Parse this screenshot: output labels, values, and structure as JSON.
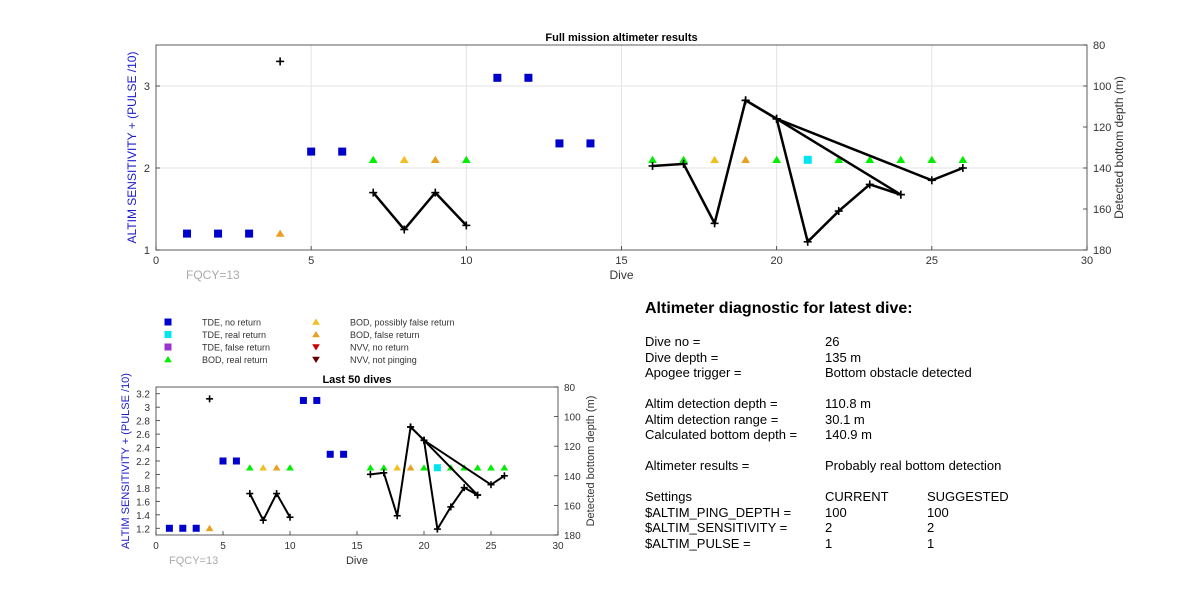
{
  "colors": {
    "TDE_no_return": "#0000cc",
    "TDE_real_return": "#00e5ee",
    "TDE_false_return": "#9933cc",
    "BOD_real_return": "#00ee00",
    "BOD_possibly_false": "#f0c020",
    "BOD_false": "#e8a020",
    "NVV_no_return": "#cc0000",
    "NVV_not_pinging": "#660000",
    "depth_line": "#000000",
    "left_axis": "#1a1acc",
    "fqcy": "#aaaaaa"
  },
  "chart_data": [
    {
      "id": "full_mission",
      "type": "scatter",
      "title": "Full mission altimeter results",
      "xlabel": "Dive",
      "ylabel": "ALTIM SENSITIVITY + (PULSE /10)",
      "y2label": "Detected bottom depth (m)",
      "xlim": [
        0,
        30
      ],
      "ylim": [
        1,
        3.5
      ],
      "y2lim": [
        80,
        180
      ],
      "y2_reversed": true,
      "grid": true,
      "x_ticks": [
        0,
        5,
        10,
        15,
        20,
        25,
        30
      ],
      "y_ticks": [
        1,
        2,
        3
      ],
      "y2_ticks": [
        80,
        100,
        120,
        140,
        160,
        180
      ],
      "annotation": "FQCY=13",
      "series": [
        {
          "name": "TDE, no return",
          "marker": "square",
          "x": [
            1,
            2,
            3,
            5,
            6,
            11,
            12,
            13,
            14
          ],
          "y": [
            1.2,
            1.2,
            1.2,
            2.2,
            2.2,
            3.1,
            3.1,
            2.3,
            2.3
          ]
        },
        {
          "name": "TDE, real return",
          "marker": "square",
          "x": [
            21
          ],
          "y": [
            2.1
          ]
        },
        {
          "name": "BOD, real return",
          "marker": "triangle-up",
          "x": [
            7,
            10,
            16,
            17,
            20,
            22,
            23,
            24,
            25,
            26
          ],
          "y": [
            2.1,
            2.1,
            2.1,
            2.1,
            2.1,
            2.1,
            2.1,
            2.1,
            2.1,
            2.1
          ]
        },
        {
          "name": "BOD, possibly false return",
          "marker": "triangle-up",
          "x": [
            8,
            18
          ],
          "y": [
            2.1,
            2.1
          ]
        },
        {
          "name": "BOD, false return",
          "marker": "triangle-up",
          "x": [
            4,
            9,
            19
          ],
          "y": [
            1.2,
            2.1,
            2.1
          ]
        }
      ],
      "depth_line": {
        "x": [
          4,
          7,
          8,
          9,
          10,
          16,
          17,
          18,
          19,
          20,
          21,
          22,
          23,
          24,
          19,
          20,
          25,
          26,
          20,
          24
        ],
        "y": [
          88,
          152,
          170,
          152,
          168,
          139,
          138,
          167,
          107,
          116,
          176,
          161,
          148,
          153,
          107,
          116,
          146,
          140,
          116,
          153
        ],
        "segments": [
          [
            0,
            1
          ],
          [
            1,
            5
          ],
          [
            5,
            14
          ],
          [
            14,
            18
          ],
          [
            18,
            20
          ]
        ]
      }
    },
    {
      "id": "last_50",
      "type": "scatter",
      "title": "Last 50 dives",
      "xlabel": "Dive",
      "ylabel": "ALTIM SENSITIVITY + (PULSE /10)",
      "y2label": "Detected bottom depth (m)",
      "xlim": [
        0,
        30
      ],
      "ylim": [
        1.1,
        3.3
      ],
      "y2lim": [
        80,
        180
      ],
      "y2_reversed": true,
      "grid": false,
      "x_ticks": [
        0,
        5,
        10,
        15,
        20,
        25,
        30
      ],
      "y_ticks": [
        1.2,
        1.4,
        1.6,
        1.8,
        2,
        2.2,
        2.4,
        2.6,
        2.8,
        3,
        3.2
      ],
      "y_tick_labels": [
        "1.2",
        "1.4",
        "1.6",
        "1.8",
        "2",
        "2.2",
        "2.4",
        "2.6",
        "2.8",
        "3",
        "3.2"
      ],
      "y2_ticks": [
        80,
        100,
        120,
        140,
        160,
        180
      ],
      "annotation": "FQCY=13",
      "legend": {
        "placement": "top",
        "entries": [
          {
            "label": "TDE, no return",
            "marker": "square",
            "color": "#0000cc"
          },
          {
            "label": "TDE, real return",
            "marker": "square",
            "color": "#00e5ee"
          },
          {
            "label": "TDE, false return",
            "marker": "square",
            "color": "#9933cc"
          },
          {
            "label": "BOD, real return",
            "marker": "triangle-up",
            "color": "#00ee00"
          },
          {
            "label": "BOD, possibly false return",
            "marker": "triangle-up",
            "color": "#f0c020"
          },
          {
            "label": "BOD, false return",
            "marker": "triangle-up",
            "color": "#e8a020"
          },
          {
            "label": "NVV, no return",
            "marker": "triangle-down",
            "color": "#cc0000"
          },
          {
            "label": "NVV, not pinging",
            "marker": "triangle-down",
            "color": "#660000"
          }
        ]
      }
    }
  ],
  "diagnostic": {
    "title": "Altimeter diagnostic for latest dive:",
    "dive_no": {
      "label": "Dive no =",
      "value": "26"
    },
    "dive_depth": {
      "label": "Dive depth =",
      "value": "135 m"
    },
    "apogee_trigger": {
      "label": "Apogee trigger =",
      "value": "Bottom obstacle detected"
    },
    "altim_detection_depth": {
      "label": "Altim detection depth =",
      "value": "110.8 m"
    },
    "altim_detection_range": {
      "label": "Altim detection range =",
      "value": "30.1 m"
    },
    "calculated_bottom_depth": {
      "label": "Calculated bottom depth =",
      "value": "140.9 m"
    },
    "altimeter_results": {
      "label": "Altimeter results =",
      "value": "Probably real bottom detection"
    },
    "settings": {
      "header": {
        "label": "Settings",
        "current": "CURRENT",
        "suggested": "SUGGESTED"
      },
      "rows": [
        {
          "label": "$ALTIM_PING_DEPTH =",
          "current": "100",
          "suggested": "100"
        },
        {
          "label": "$ALTIM_SENSITIVITY =",
          "current": "2",
          "suggested": "2"
        },
        {
          "label": "$ALTIM_PULSE =",
          "current": "1",
          "suggested": "1"
        }
      ]
    }
  }
}
